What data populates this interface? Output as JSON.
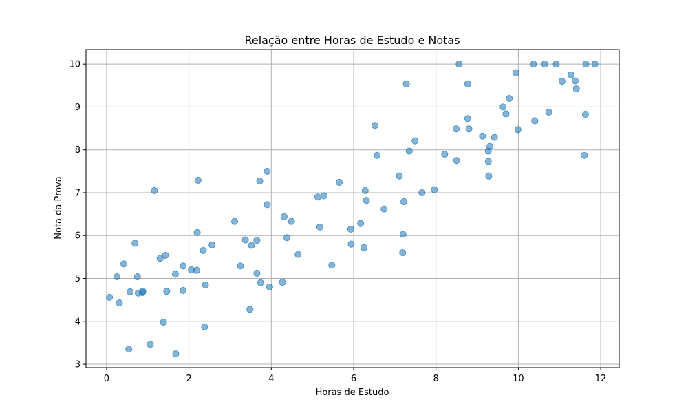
{
  "chart_data": {
    "type": "scatter",
    "title": "Relação entre Horas de Estudo e Notas",
    "xlabel": "Horas de Estudo",
    "ylabel": "Nota da Prova",
    "xlim": [
      -0.5,
      12.45
    ],
    "ylim": [
      2.92,
      10.34
    ],
    "xticks": [
      0,
      2,
      4,
      6,
      8,
      10,
      12
    ],
    "yticks": [
      3,
      4,
      5,
      6,
      7,
      8,
      9,
      10
    ],
    "grid": true,
    "marker_color": "#1f77b4",
    "marker_alpha": 0.55,
    "series": [
      {
        "points": [
          [
            0.07,
            4.56
          ],
          [
            0.25,
            5.04
          ],
          [
            0.31,
            4.43
          ],
          [
            0.42,
            5.34
          ],
          [
            0.54,
            3.35
          ],
          [
            0.57,
            4.69
          ],
          [
            0.69,
            5.82
          ],
          [
            0.75,
            5.04
          ],
          [
            0.77,
            4.66
          ],
          [
            0.87,
            4.67
          ],
          [
            0.88,
            4.7
          ],
          [
            1.06,
            3.46
          ],
          [
            1.16,
            7.05
          ],
          [
            1.3,
            5.47
          ],
          [
            1.38,
            3.98
          ],
          [
            1.43,
            5.54
          ],
          [
            1.46,
            4.7
          ],
          [
            1.67,
            5.1
          ],
          [
            1.68,
            3.24
          ],
          [
            1.86,
            5.29
          ],
          [
            1.86,
            4.72
          ],
          [
            2.06,
            5.2
          ],
          [
            2.19,
            5.19
          ],
          [
            2.2,
            6.07
          ],
          [
            2.22,
            7.29
          ],
          [
            2.35,
            5.65
          ],
          [
            2.38,
            3.87
          ],
          [
            2.4,
            4.85
          ],
          [
            2.56,
            5.78
          ],
          [
            3.11,
            6.33
          ],
          [
            3.25,
            5.29
          ],
          [
            3.37,
            5.9
          ],
          [
            3.48,
            4.28
          ],
          [
            3.52,
            5.77
          ],
          [
            3.65,
            5.89
          ],
          [
            3.65,
            5.12
          ],
          [
            3.72,
            7.27
          ],
          [
            3.74,
            4.9
          ],
          [
            3.9,
            7.5
          ],
          [
            3.9,
            6.72
          ],
          [
            3.96,
            4.8
          ],
          [
            4.27,
            4.91
          ],
          [
            4.31,
            6.44
          ],
          [
            4.38,
            5.95
          ],
          [
            4.49,
            6.33
          ],
          [
            4.65,
            5.56
          ],
          [
            5.13,
            6.9
          ],
          [
            5.18,
            6.2
          ],
          [
            5.28,
            6.93
          ],
          [
            5.47,
            5.31
          ],
          [
            5.65,
            7.24
          ],
          [
            5.93,
            6.15
          ],
          [
            5.94,
            5.8
          ],
          [
            6.17,
            6.28
          ],
          [
            6.25,
            5.72
          ],
          [
            6.28,
            7.05
          ],
          [
            6.31,
            6.82
          ],
          [
            6.52,
            8.57
          ],
          [
            6.57,
            7.87
          ],
          [
            6.74,
            6.62
          ],
          [
            7.11,
            7.39
          ],
          [
            7.19,
            5.6
          ],
          [
            7.2,
            6.03
          ],
          [
            7.22,
            6.79
          ],
          [
            7.28,
            9.54
          ],
          [
            7.35,
            7.97
          ],
          [
            7.49,
            8.21
          ],
          [
            7.66,
            7.0
          ],
          [
            7.96,
            7.07
          ],
          [
            8.21,
            7.9
          ],
          [
            8.49,
            8.49
          ],
          [
            8.5,
            7.75
          ],
          [
            8.56,
            10.0
          ],
          [
            8.77,
            9.54
          ],
          [
            8.77,
            8.73
          ],
          [
            8.8,
            8.49
          ],
          [
            9.13,
            8.32
          ],
          [
            9.27,
            7.73
          ],
          [
            9.27,
            7.97
          ],
          [
            9.28,
            7.39
          ],
          [
            9.31,
            8.08
          ],
          [
            9.42,
            8.29
          ],
          [
            9.63,
            9.0
          ],
          [
            9.7,
            8.84
          ],
          [
            9.78,
            9.2
          ],
          [
            9.94,
            9.8
          ],
          [
            9.99,
            8.47
          ],
          [
            10.37,
            10.0
          ],
          [
            10.4,
            8.68
          ],
          [
            10.64,
            10.0
          ],
          [
            10.74,
            8.88
          ],
          [
            10.92,
            10.0
          ],
          [
            11.06,
            9.6
          ],
          [
            11.28,
            9.75
          ],
          [
            11.38,
            9.61
          ],
          [
            11.41,
            9.42
          ],
          [
            11.6,
            7.87
          ],
          [
            11.63,
            8.83
          ],
          [
            11.64,
            10.0
          ],
          [
            11.86,
            10.0
          ]
        ]
      }
    ]
  }
}
